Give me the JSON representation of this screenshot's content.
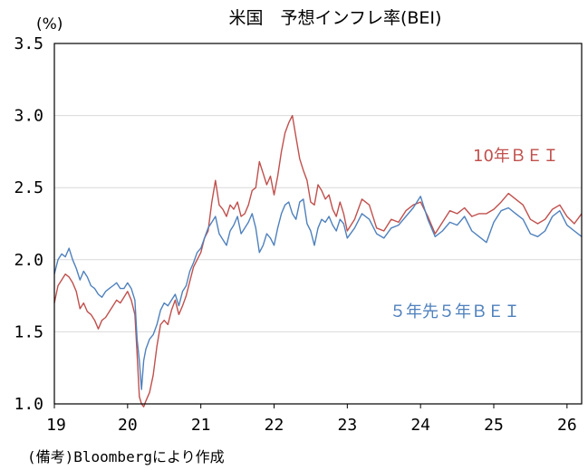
{
  "colors": {
    "bei10": "#c0504d",
    "bei5y5y": "#4f81bd"
  },
  "chart_data": {
    "type": "line",
    "title": "米国　予想インフレ率(BEI)",
    "unit": "(%)",
    "source": "(備考)Bloombergにより作成",
    "ylim": [
      1.0,
      3.5
    ],
    "yticks": [
      "3.5",
      "3.0",
      "2.5",
      "2.0",
      "1.5",
      "1.0"
    ],
    "xticks": [
      "19",
      "20",
      "21",
      "22",
      "23",
      "24",
      "25",
      "26"
    ],
    "xlim": [
      2019.0,
      2026.2
    ],
    "grid": true,
    "series": [
      {
        "name": "10年ＢＥＩ",
        "color": "#c0504d",
        "x": [
          2019.0,
          2019.05,
          2019.1,
          2019.15,
          2019.2,
          2019.25,
          2019.3,
          2019.35,
          2019.4,
          2019.45,
          2019.5,
          2019.55,
          2019.6,
          2019.65,
          2019.7,
          2019.75,
          2019.8,
          2019.85,
          2019.9,
          2019.95,
          2020.0,
          2020.05,
          2020.1,
          2020.13,
          2020.16,
          2020.19,
          2020.22,
          2020.25,
          2020.3,
          2020.35,
          2020.4,
          2020.45,
          2020.5,
          2020.55,
          2020.6,
          2020.65,
          2020.7,
          2020.75,
          2020.8,
          2020.85,
          2020.9,
          2020.95,
          2021.0,
          2021.05,
          2021.1,
          2021.15,
          2021.2,
          2021.25,
          2021.3,
          2021.35,
          2021.4,
          2021.45,
          2021.5,
          2021.55,
          2021.6,
          2021.65,
          2021.7,
          2021.75,
          2021.8,
          2021.85,
          2021.9,
          2021.95,
          2022.0,
          2022.05,
          2022.1,
          2022.15,
          2022.2,
          2022.25,
          2022.3,
          2022.35,
          2022.4,
          2022.45,
          2022.5,
          2022.55,
          2022.6,
          2022.65,
          2022.7,
          2022.75,
          2022.8,
          2022.85,
          2022.9,
          2022.95,
          2023.0,
          2023.1,
          2023.2,
          2023.3,
          2023.4,
          2023.5,
          2023.6,
          2023.7,
          2023.8,
          2023.9,
          2024.0,
          2024.1,
          2024.2,
          2024.3,
          2024.4,
          2024.5,
          2024.6,
          2024.7,
          2024.8,
          2024.9,
          2025.0,
          2025.1,
          2025.2,
          2025.3,
          2025.4,
          2025.5,
          2025.6,
          2025.7,
          2025.8,
          2025.9,
          2026.0,
          2026.1,
          2026.2
        ],
        "values": [
          1.7,
          1.82,
          1.86,
          1.9,
          1.88,
          1.84,
          1.78,
          1.66,
          1.7,
          1.64,
          1.62,
          1.58,
          1.52,
          1.58,
          1.6,
          1.64,
          1.68,
          1.72,
          1.7,
          1.74,
          1.78,
          1.72,
          1.62,
          1.35,
          1.05,
          1.0,
          0.98,
          1.02,
          1.08,
          1.2,
          1.4,
          1.55,
          1.58,
          1.55,
          1.65,
          1.72,
          1.62,
          1.68,
          1.75,
          1.85,
          1.95,
          2.0,
          2.05,
          2.15,
          2.2,
          2.4,
          2.55,
          2.38,
          2.35,
          2.3,
          2.38,
          2.35,
          2.4,
          2.3,
          2.32,
          2.38,
          2.48,
          2.5,
          2.68,
          2.6,
          2.52,
          2.58,
          2.45,
          2.58,
          2.75,
          2.88,
          2.95,
          3.0,
          2.85,
          2.7,
          2.62,
          2.55,
          2.4,
          2.38,
          2.52,
          2.48,
          2.42,
          2.45,
          2.35,
          2.3,
          2.4,
          2.32,
          2.2,
          2.28,
          2.42,
          2.38,
          2.22,
          2.2,
          2.28,
          2.26,
          2.34,
          2.38,
          2.4,
          2.3,
          2.18,
          2.26,
          2.34,
          2.32,
          2.36,
          2.3,
          2.32,
          2.32,
          2.35,
          2.4,
          2.46,
          2.42,
          2.38,
          2.28,
          2.25,
          2.28,
          2.35,
          2.38,
          2.3,
          2.25,
          2.32
        ]
      },
      {
        "name": "５年先５年ＢＥＩ",
        "color": "#4f81bd",
        "x": [
          2019.0,
          2019.05,
          2019.1,
          2019.15,
          2019.2,
          2019.25,
          2019.3,
          2019.35,
          2019.4,
          2019.45,
          2019.5,
          2019.55,
          2019.6,
          2019.65,
          2019.7,
          2019.75,
          2019.8,
          2019.85,
          2019.9,
          2019.95,
          2020.0,
          2020.05,
          2020.1,
          2020.13,
          2020.16,
          2020.19,
          2020.22,
          2020.25,
          2020.3,
          2020.35,
          2020.4,
          2020.45,
          2020.5,
          2020.55,
          2020.6,
          2020.65,
          2020.7,
          2020.75,
          2020.8,
          2020.85,
          2020.9,
          2020.95,
          2021.0,
          2021.05,
          2021.1,
          2021.15,
          2021.2,
          2021.25,
          2021.3,
          2021.35,
          2021.4,
          2021.45,
          2021.5,
          2021.55,
          2021.6,
          2021.65,
          2021.7,
          2021.75,
          2021.8,
          2021.85,
          2021.9,
          2021.95,
          2022.0,
          2022.05,
          2022.1,
          2022.15,
          2022.2,
          2022.25,
          2022.3,
          2022.35,
          2022.4,
          2022.45,
          2022.5,
          2022.55,
          2022.6,
          2022.65,
          2022.7,
          2022.75,
          2022.8,
          2022.85,
          2022.9,
          2022.95,
          2023.0,
          2023.1,
          2023.2,
          2023.3,
          2023.4,
          2023.5,
          2023.6,
          2023.7,
          2023.8,
          2023.9,
          2024.0,
          2024.1,
          2024.2,
          2024.3,
          2024.4,
          2024.5,
          2024.6,
          2024.7,
          2024.8,
          2024.9,
          2025.0,
          2025.1,
          2025.2,
          2025.3,
          2025.4,
          2025.5,
          2025.6,
          2025.7,
          2025.8,
          2025.9,
          2026.0,
          2026.1,
          2026.2
        ],
        "values": [
          1.9,
          2.0,
          2.04,
          2.02,
          2.08,
          2.0,
          1.94,
          1.86,
          1.92,
          1.88,
          1.82,
          1.8,
          1.76,
          1.74,
          1.78,
          1.8,
          1.82,
          1.84,
          1.8,
          1.8,
          1.84,
          1.8,
          1.72,
          1.45,
          1.3,
          1.1,
          1.3,
          1.38,
          1.45,
          1.48,
          1.55,
          1.65,
          1.7,
          1.68,
          1.72,
          1.76,
          1.68,
          1.78,
          1.82,
          1.92,
          1.98,
          2.05,
          2.08,
          2.15,
          2.22,
          2.26,
          2.3,
          2.18,
          2.14,
          2.1,
          2.2,
          2.24,
          2.3,
          2.18,
          2.22,
          2.26,
          2.32,
          2.22,
          2.05,
          2.1,
          2.18,
          2.15,
          2.1,
          2.22,
          2.32,
          2.38,
          2.4,
          2.32,
          2.28,
          2.4,
          2.42,
          2.25,
          2.2,
          2.1,
          2.22,
          2.28,
          2.26,
          2.3,
          2.24,
          2.2,
          2.28,
          2.25,
          2.15,
          2.22,
          2.32,
          2.28,
          2.18,
          2.15,
          2.22,
          2.24,
          2.3,
          2.36,
          2.44,
          2.28,
          2.16,
          2.2,
          2.26,
          2.24,
          2.3,
          2.2,
          2.16,
          2.12,
          2.26,
          2.34,
          2.36,
          2.32,
          2.28,
          2.18,
          2.16,
          2.2,
          2.3,
          2.34,
          2.24,
          2.2,
          2.16
        ]
      }
    ],
    "annotations": [
      {
        "text": "10年ＢＥＩ",
        "series": 0
      },
      {
        "text": "５年先５年ＢＥＩ",
        "series": 1
      }
    ]
  }
}
